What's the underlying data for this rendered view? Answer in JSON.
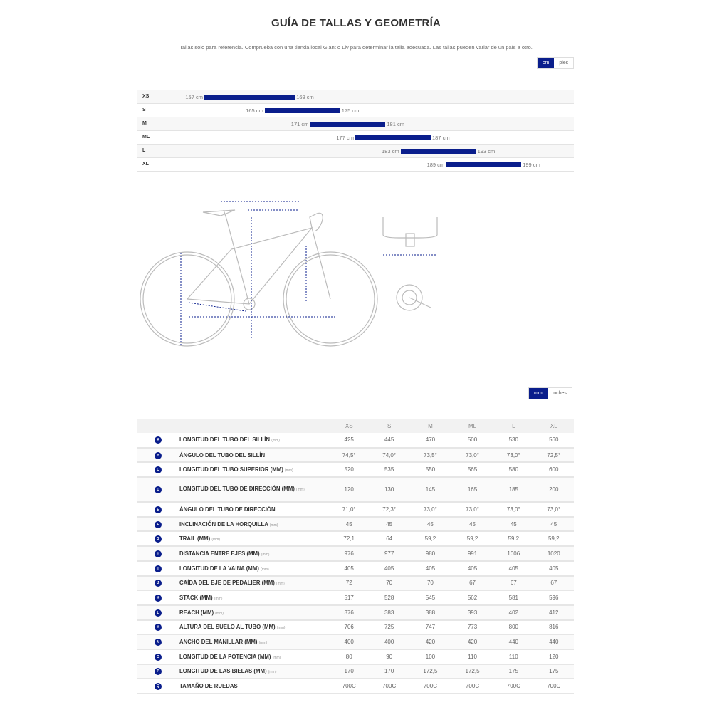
{
  "title": "GUÍA DE TALLAS Y GEOMETRÍA",
  "subtitle": "Tallas solo para referencia. Comprueba con una tienda local Giant o Liv para determinar la talla adecuada. Las tallas pueden variar de un país a otro.",
  "height_units": {
    "active": "cm",
    "inactive": "pies"
  },
  "geo_units": {
    "active": "mm",
    "inactive": "inches"
  },
  "accent_color": "#0a1e8c",
  "size_chart": [
    {
      "size": "XS",
      "min": 157,
      "max": 169,
      "min_label": "157 cm",
      "max_label": "169 cm"
    },
    {
      "size": "S",
      "min": 165,
      "max": 175,
      "min_label": "165 cm",
      "max_label": "175 cm"
    },
    {
      "size": "M",
      "min": 171,
      "max": 181,
      "min_label": "171 cm",
      "max_label": "181 cm"
    },
    {
      "size": "ML",
      "min": 177,
      "max": 187,
      "min_label": "177 cm",
      "max_label": "187 cm"
    },
    {
      "size": "L",
      "min": 183,
      "max": 193,
      "min_label": "183 cm",
      "max_label": "193 cm"
    },
    {
      "size": "XL",
      "min": 189,
      "max": 199,
      "min_label": "189 cm",
      "max_label": "199 cm"
    }
  ],
  "geometry": {
    "columns": [
      "XS",
      "S",
      "M",
      "ML",
      "L",
      "XL"
    ],
    "rows": [
      {
        "key": "A",
        "label": "LONGITUD DEL TUBO DEL SILLÍN",
        "unit": "(mm)",
        "values": [
          "425",
          "445",
          "470",
          "500",
          "530",
          "560"
        ]
      },
      {
        "key": "B",
        "label": "ÁNGULO DEL TUBO DEL SILLÍN",
        "unit": "",
        "values": [
          "74,5°",
          "74,0°",
          "73,5°",
          "73,0°",
          "73,0°",
          "72,5°"
        ]
      },
      {
        "key": "C",
        "label": "LONGITUD DEL TUBO SUPERIOR (MM)",
        "unit": "(mm)",
        "values": [
          "520",
          "535",
          "550",
          "565",
          "580",
          "600"
        ]
      },
      {
        "key": "D",
        "label": "LONGITUD DEL TUBO DE DIRECCIÓN (MM)",
        "unit": "(mm)",
        "values": [
          "120",
          "130",
          "145",
          "165",
          "185",
          "200"
        ]
      },
      {
        "key": "E",
        "label": "ÁNGULO DEL TUBO DE DIRECCIÓN",
        "unit": "",
        "values": [
          "71,0°",
          "72,3°",
          "73,0°",
          "73,0°",
          "73,0°",
          "73,0°"
        ]
      },
      {
        "key": "F",
        "label": "INCLINACIÓN DE LA HORQUILLA",
        "unit": "(mm)",
        "values": [
          "45",
          "45",
          "45",
          "45",
          "45",
          "45"
        ]
      },
      {
        "key": "G",
        "label": "TRAIL (MM)",
        "unit": "(mm)",
        "values": [
          "72,1",
          "64",
          "59,2",
          "59,2",
          "59,2",
          "59,2"
        ]
      },
      {
        "key": "H",
        "label": "DISTANCIA ENTRE EJES (MM)",
        "unit": "(mm)",
        "values": [
          "976",
          "977",
          "980",
          "991",
          "1006",
          "1020"
        ]
      },
      {
        "key": "I",
        "label": "LONGITUD DE LA VAINA (MM)",
        "unit": "(mm)",
        "values": [
          "405",
          "405",
          "405",
          "405",
          "405",
          "405"
        ]
      },
      {
        "key": "J",
        "label": "CAÍDA DEL EJE DE PEDALIER (MM)",
        "unit": "(mm)",
        "values": [
          "72",
          "70",
          "70",
          "67",
          "67",
          "67"
        ]
      },
      {
        "key": "K",
        "label": "STACK (MM)",
        "unit": "(mm)",
        "values": [
          "517",
          "528",
          "545",
          "562",
          "581",
          "596"
        ]
      },
      {
        "key": "L",
        "label": "REACH (MM)",
        "unit": "(mm)",
        "values": [
          "376",
          "383",
          "388",
          "393",
          "402",
          "412"
        ]
      },
      {
        "key": "M",
        "label": "ALTURA DEL SUELO AL TUBO (MM)",
        "unit": "(mm)",
        "values": [
          "706",
          "725",
          "747",
          "773",
          "800",
          "816"
        ]
      },
      {
        "key": "N",
        "label": "ANCHO DEL MANILLAR (MM)",
        "unit": "(mm)",
        "values": [
          "400",
          "400",
          "420",
          "420",
          "440",
          "440"
        ]
      },
      {
        "key": "O",
        "label": "LONGITUD DE LA POTENCIA (MM)",
        "unit": "(mm)",
        "values": [
          "80",
          "90",
          "100",
          "110",
          "110",
          "120"
        ]
      },
      {
        "key": "P",
        "label": "LONGITUD DE LAS BIELAS (MM)",
        "unit": "(mm)",
        "values": [
          "170",
          "170",
          "172,5",
          "172,5",
          "175",
          "175"
        ]
      },
      {
        "key": "Q",
        "label": "TAMAÑO DE RUEDAS",
        "unit": "",
        "values": [
          "700C",
          "700C",
          "700C",
          "700C",
          "700C",
          "700C"
        ]
      }
    ]
  }
}
